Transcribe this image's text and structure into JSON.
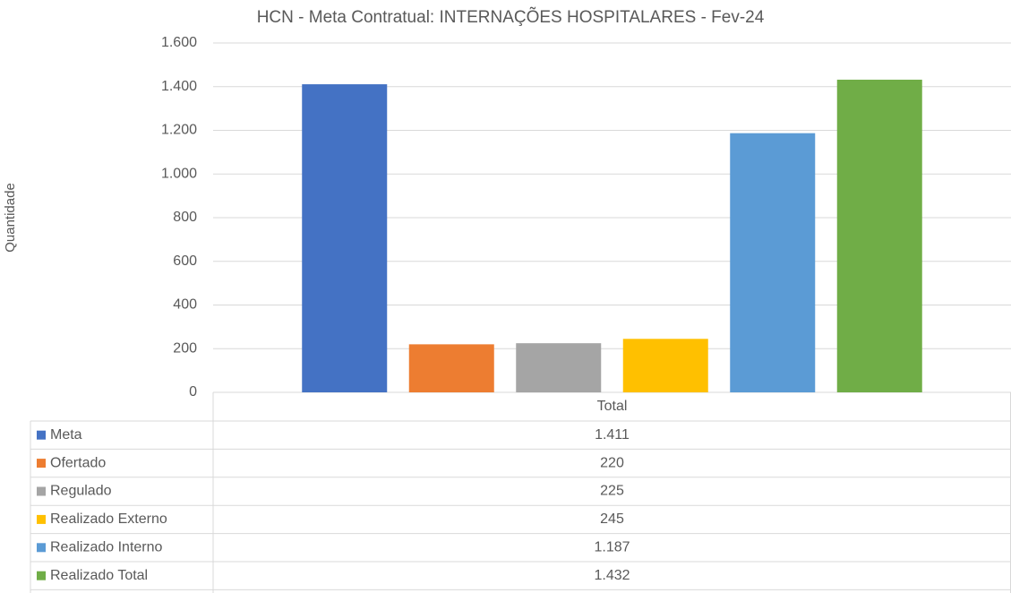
{
  "chart_data": {
    "type": "bar",
    "title": "HCN - Meta Contratual: INTERNAÇÕES HOSPITALARES - Fev-24",
    "y_label": "Quantidade",
    "categories": [
      "Total"
    ],
    "series": [
      {
        "name": "Meta",
        "color": "#4472c4",
        "values": [
          1411
        ],
        "value_labels": [
          "1.411"
        ]
      },
      {
        "name": "Ofertado",
        "color": "#ed7d31",
        "values": [
          220
        ],
        "value_labels": [
          "220"
        ]
      },
      {
        "name": "Regulado",
        "color": "#a5a5a5",
        "values": [
          225
        ],
        "value_labels": [
          "225"
        ]
      },
      {
        "name": "Realizado Externo",
        "color": "#ffc000",
        "values": [
          245
        ],
        "value_labels": [
          "245"
        ]
      },
      {
        "name": "Realizado Interno",
        "color": "#5b9bd5",
        "values": [
          1187
        ],
        "value_labels": [
          "1.187"
        ]
      },
      {
        "name": "Realizado Total",
        "color": "#70ad47",
        "values": [
          1432
        ],
        "value_labels": [
          "1.432"
        ]
      }
    ],
    "ylim": [
      0,
      1600
    ],
    "yticks": [
      0,
      200,
      400,
      600,
      800,
      {
        "value": 1000,
        "label": "1.000"
      },
      {
        "value": 1200,
        "label": "1.200"
      },
      {
        "value": 1400,
        "label": "1.400"
      },
      {
        "value": 1600,
        "label": "1.600"
      }
    ],
    "grid": true
  }
}
